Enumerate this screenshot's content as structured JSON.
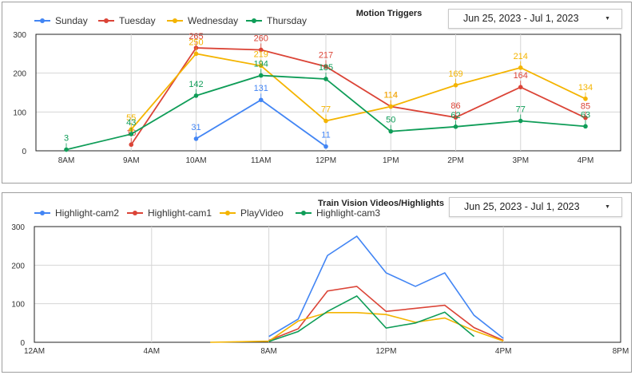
{
  "chart_data": [
    {
      "type": "line",
      "title": "Motion Triggers",
      "date_range": "Jun 25, 2023 - Jul 1, 2023",
      "categories": [
        "8AM",
        "9AM",
        "10AM",
        "11AM",
        "12PM",
        "1PM",
        "2PM",
        "3PM",
        "4PM"
      ],
      "yticks": [
        "0",
        "100",
        "200",
        "300"
      ],
      "ylim": [
        0,
        300
      ],
      "legend_position": "top-left",
      "series": [
        {
          "name": "Sunday",
          "color": "#4285f4",
          "values": [
            null,
            null,
            31,
            131,
            11,
            null,
            null,
            null,
            null
          ],
          "labels": [
            "",
            "",
            "31",
            "131",
            "11",
            "",
            "",
            "",
            ""
          ]
        },
        {
          "name": "Tuesday",
          "color": "#db4437",
          "values": [
            null,
            16,
            265,
            260,
            217,
            114,
            86,
            164,
            85
          ],
          "labels": [
            "",
            "16",
            "265",
            "260",
            "217",
            "114",
            "86",
            "164",
            "85"
          ]
        },
        {
          "name": "Wednesday",
          "color": "#f4b400",
          "values": [
            null,
            55,
            250,
            219,
            77,
            114,
            169,
            214,
            134
          ],
          "labels": [
            "",
            "55",
            "250",
            "219",
            "77",
            "114",
            "169",
            "214",
            "134"
          ]
        },
        {
          "name": "Thursday",
          "color": "#0f9d58",
          "values": [
            3,
            43,
            142,
            194,
            185,
            50,
            62,
            77,
            63
          ],
          "labels": [
            "3",
            "43",
            "142",
            "194",
            "185",
            "50",
            "62",
            "77",
            "63"
          ]
        }
      ]
    },
    {
      "type": "line",
      "title": "Train Vision Videos/Highlights",
      "date_range": "Jun 25, 2023 - Jul 1, 2023",
      "xticks": [
        {
          "label": "12AM",
          "hour": 0
        },
        {
          "label": "4AM",
          "hour": 4
        },
        {
          "label": "8AM",
          "hour": 8
        },
        {
          "label": "12PM",
          "hour": 12
        },
        {
          "label": "4PM",
          "hour": 16
        },
        {
          "label": "8PM",
          "hour": 20
        }
      ],
      "yticks": [
        "0",
        "100",
        "200",
        "300"
      ],
      "ylim": [
        0,
        300
      ],
      "xlim": [
        0,
        20
      ],
      "legend_position": "top-left",
      "series": [
        {
          "name": "Highlight-cam2",
          "color": "#4285f4",
          "hours": [
            8,
            9,
            10,
            11,
            12,
            13,
            14,
            15,
            16
          ],
          "values": [
            15,
            60,
            225,
            275,
            180,
            145,
            180,
            70,
            10
          ]
        },
        {
          "name": "Highlight-cam1",
          "color": "#db4437",
          "hours": [
            8,
            9,
            10,
            11,
            12,
            13,
            14,
            15,
            16
          ],
          "values": [
            5,
            35,
            133,
            145,
            80,
            88,
            96,
            38,
            5
          ]
        },
        {
          "name": "PlayVideo",
          "color": "#f4b400",
          "hours": [
            6,
            8,
            9,
            10,
            11,
            12,
            13,
            14,
            15,
            16
          ],
          "values": [
            0,
            3,
            55,
            77,
            77,
            72,
            52,
            63,
            30,
            3
          ]
        },
        {
          "name": "Highlight-cam3",
          "color": "#0f9d58",
          "hours": [
            8,
            9,
            10,
            11,
            12,
            13,
            14,
            15
          ],
          "values": [
            2,
            28,
            80,
            120,
            37,
            50,
            78,
            15
          ]
        }
      ]
    }
  ]
}
